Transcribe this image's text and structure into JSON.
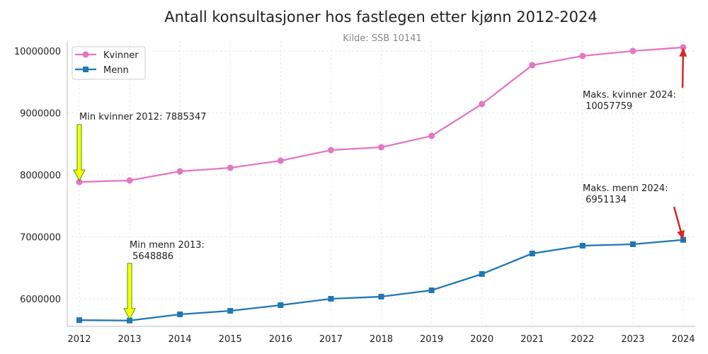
{
  "chart_data": {
    "type": "line",
    "title": "Antall konsultasjoner hos fastlegen etter kjønn 2012-2024",
    "subtitle": "Kilde: SSB 10141",
    "xlabel": "",
    "ylabel": "",
    "x": [
      2012,
      2013,
      2014,
      2015,
      2016,
      2017,
      2018,
      2019,
      2020,
      2021,
      2022,
      2023,
      2024
    ],
    "xlim": [
      2011.77,
      2024.25
    ],
    "ylim": [
      5560000,
      10150000
    ],
    "yticks": [
      6000000,
      7000000,
      8000000,
      9000000,
      10000000
    ],
    "grid": true,
    "legend": "top-left",
    "series": [
      {
        "name": "Kvinner",
        "color": "#e377c2",
        "marker": "circle",
        "values": [
          7885347,
          7910000,
          8057000,
          8114000,
          8229000,
          8400000,
          8446000,
          8629000,
          9143000,
          9771000,
          9920000,
          10000000,
          10057759
        ]
      },
      {
        "name": "Menn",
        "color": "#1f77b4",
        "marker": "square",
        "values": [
          5655000,
          5648886,
          5749000,
          5806000,
          5897000,
          6000000,
          6034000,
          6137000,
          6400000,
          6731000,
          6857000,
          6880000,
          6951134
        ]
      }
    ],
    "annotations": [
      {
        "text": "Min kvinner 2012: 7885347",
        "x": 2012,
        "y": 7885347,
        "arrow": "yellow"
      },
      {
        "text": "Min menn 2013:\n 5648886",
        "x": 2013,
        "y": 5648886,
        "arrow": "yellow"
      },
      {
        "text": "Maks. kvinner 2024:\n 10057759",
        "x": 2024,
        "y": 10057759,
        "arrow": "red"
      },
      {
        "text": "Maks. menn 2024:\n 6951134",
        "x": 2024,
        "y": 6951134,
        "arrow": "red"
      }
    ]
  }
}
